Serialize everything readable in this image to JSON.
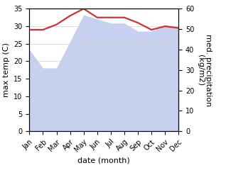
{
  "chart_data": {
    "type": "line",
    "categories": [
      "Jan",
      "Feb",
      "Mar",
      "Apr",
      "May",
      "Jun",
      "Jul",
      "Aug",
      "Sep",
      "Oct",
      "Nov",
      "Dec"
    ],
    "series": [
      {
        "type": "area",
        "axis": "y2",
        "color": "#c8d0f0",
        "values": [
          40,
          31,
          31,
          44,
          57,
          55,
          53,
          53,
          49,
          49,
          52,
          51
        ]
      },
      {
        "type": "line",
        "color": "#cc3333",
        "values": [
          29.0,
          29.0,
          30.5,
          33.0,
          35.0,
          32.5,
          32.5,
          32.5,
          31.0,
          29.0,
          30.0,
          29.5
        ]
      }
    ],
    "xlabel": "date (month)",
    "ylabel": "max temp (C)",
    "y2label": "med. precipitation\n(kg/m2)",
    "ylim": [
      0,
      35
    ],
    "yticks": [
      0,
      5,
      10,
      15,
      20,
      25,
      30,
      35
    ],
    "y2lim": [
      0,
      60
    ],
    "y2ticks": [
      0,
      10,
      20,
      30,
      40,
      50,
      60
    ],
    "grid": true
  }
}
